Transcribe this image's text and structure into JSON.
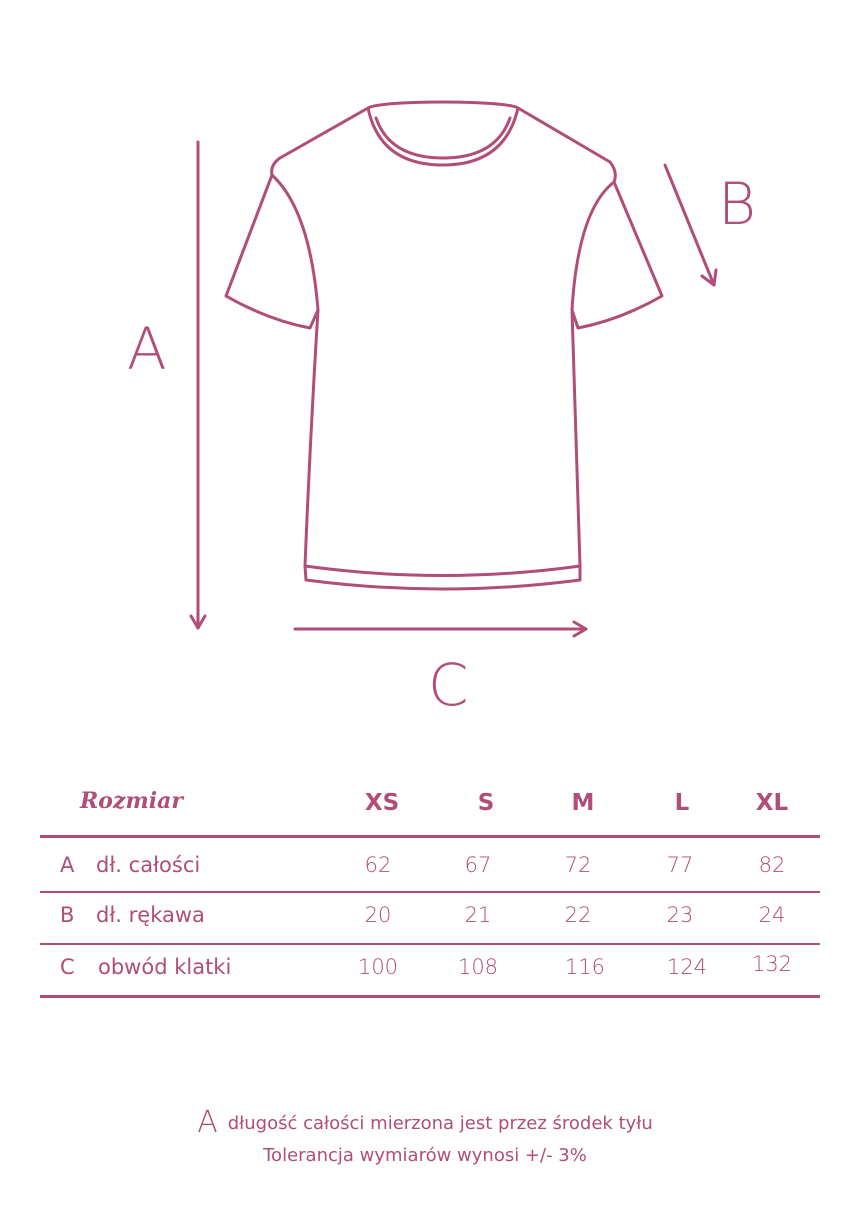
{
  "diagram": {
    "labels": {
      "a": "A",
      "b": "B",
      "c": "C"
    },
    "color": "#b04d78"
  },
  "table": {
    "header_label": "Rozmiar",
    "sizes": [
      "XS",
      "S",
      "M",
      "L",
      "XL"
    ],
    "rows": [
      {
        "key": "A",
        "label": "dł. całości",
        "values": [
          "62",
          "67",
          "72",
          "77",
          "82"
        ]
      },
      {
        "key": "B",
        "label": "dł. rękawa",
        "values": [
          "20",
          "21",
          "22",
          "23",
          "24"
        ]
      },
      {
        "key": "C",
        "label": "obwód klatki",
        "values": [
          "100",
          "108",
          "116",
          "124",
          "132"
        ]
      }
    ]
  },
  "notes": {
    "key": "A",
    "line1": "długość całości mierzona jest przez środek tyłu",
    "line2": "Tolerancja wymiarów wynosi +/- 3%"
  }
}
